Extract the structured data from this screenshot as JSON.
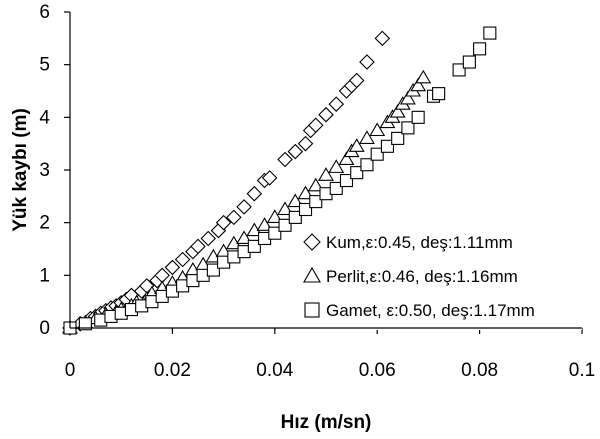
{
  "chart_data": {
    "type": "scatter",
    "title": "",
    "xlabel": "Hız (m/sn)",
    "ylabel": "Yük kaybı  (m)",
    "xlim": [
      0,
      0.1
    ],
    "ylim": [
      0,
      6
    ],
    "xticks": [
      "0",
      "0.02",
      "0.04",
      "0.06",
      "0.08",
      "0.1"
    ],
    "yticks": [
      "0",
      "1",
      "2",
      "3",
      "4",
      "5",
      "6"
    ],
    "grid": false,
    "legend_position": "bottom-right",
    "series": [
      {
        "name": "Kum,ε:0.45, deş:1.11mm",
        "marker": "diamond",
        "x": [
          0,
          0.002,
          0.004,
          0.005,
          0.006,
          0.007,
          0.008,
          0.009,
          0.01,
          0.011,
          0.012,
          0.014,
          0.015,
          0.017,
          0.018,
          0.02,
          0.022,
          0.024,
          0.025,
          0.027,
          0.029,
          0.03,
          0.032,
          0.034,
          0.036,
          0.038,
          0.039,
          0.042,
          0.044,
          0.046,
          0.047,
          0.048,
          0.05,
          0.052,
          0.054,
          0.055,
          0.056,
          0.058,
          0.061
        ],
        "y": [
          0,
          0.08,
          0.18,
          0.22,
          0.28,
          0.33,
          0.38,
          0.42,
          0.48,
          0.54,
          0.62,
          0.7,
          0.8,
          0.9,
          1.0,
          1.15,
          1.3,
          1.45,
          1.55,
          1.7,
          1.85,
          2.0,
          2.1,
          2.3,
          2.55,
          2.8,
          2.85,
          3.2,
          3.35,
          3.5,
          3.75,
          3.85,
          4.05,
          4.25,
          4.5,
          4.6,
          4.7,
          5.05,
          5.5
        ]
      },
      {
        "name": "Perlit,ε:0.46, deş:1.16mm",
        "marker": "triangle",
        "x": [
          0,
          0.003,
          0.005,
          0.007,
          0.009,
          0.01,
          0.012,
          0.013,
          0.015,
          0.016,
          0.018,
          0.02,
          0.022,
          0.024,
          0.026,
          0.028,
          0.03,
          0.032,
          0.034,
          0.036,
          0.038,
          0.04,
          0.042,
          0.044,
          0.046,
          0.048,
          0.05,
          0.052,
          0.054,
          0.055,
          0.056,
          0.058,
          0.06,
          0.062,
          0.063,
          0.064,
          0.065,
          0.066,
          0.067,
          0.068,
          0.069
        ],
        "y": [
          0,
          0.1,
          0.18,
          0.25,
          0.3,
          0.35,
          0.42,
          0.48,
          0.55,
          0.65,
          0.75,
          0.85,
          0.95,
          1.1,
          1.2,
          1.35,
          1.45,
          1.6,
          1.7,
          1.85,
          1.95,
          2.1,
          2.25,
          2.4,
          2.55,
          2.7,
          2.9,
          3.05,
          3.2,
          3.35,
          3.45,
          3.6,
          3.75,
          3.9,
          4.0,
          4.1,
          4.25,
          4.35,
          4.5,
          4.6,
          4.75
        ]
      },
      {
        "name": "Gamet, ε:0.50,  deş:1.17mm",
        "marker": "square",
        "x": [
          0,
          0.003,
          0.006,
          0.008,
          0.01,
          0.012,
          0.014,
          0.016,
          0.018,
          0.02,
          0.022,
          0.024,
          0.026,
          0.028,
          0.03,
          0.032,
          0.034,
          0.036,
          0.038,
          0.04,
          0.042,
          0.044,
          0.046,
          0.048,
          0.05,
          0.052,
          0.054,
          0.056,
          0.058,
          0.06,
          0.062,
          0.064,
          0.066,
          0.068,
          0.071,
          0.072,
          0.076,
          0.078,
          0.08,
          0.082
        ],
        "y": [
          0,
          0.08,
          0.15,
          0.22,
          0.28,
          0.35,
          0.42,
          0.5,
          0.6,
          0.7,
          0.8,
          0.9,
          1.0,
          1.1,
          1.25,
          1.35,
          1.45,
          1.55,
          1.7,
          1.8,
          1.95,
          2.1,
          2.25,
          2.4,
          2.55,
          2.65,
          2.8,
          2.95,
          3.1,
          3.3,
          3.45,
          3.6,
          3.8,
          4.0,
          4.4,
          4.45,
          4.9,
          5.05,
          5.3,
          5.6
        ]
      }
    ]
  }
}
